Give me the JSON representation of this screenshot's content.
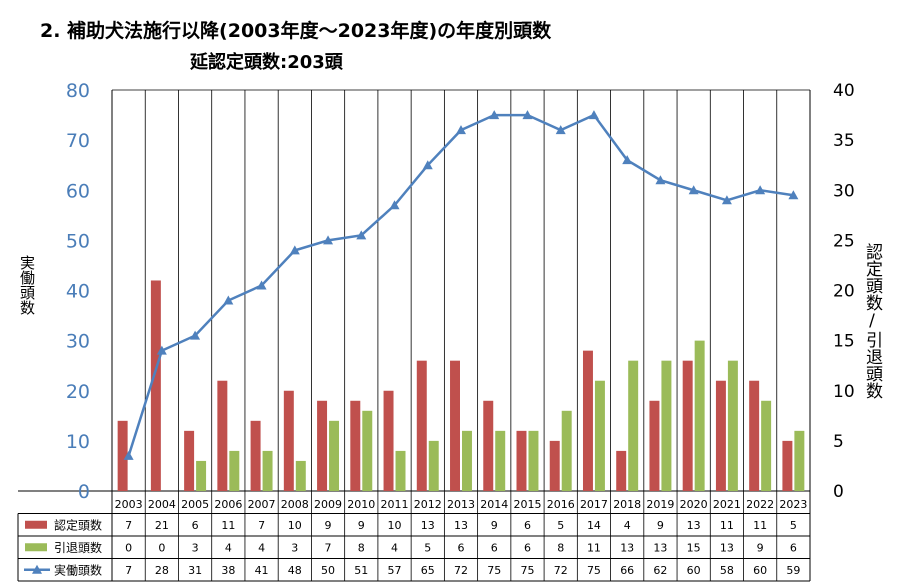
{
  "title": "2. 補助犬法施行以降(2003年度～2023年度)の年度別頭数",
  "subtitle": "延認定頭数:203頭",
  "chart_data": {
    "type": "bar",
    "categories": [
      "2003",
      "2004",
      "2005",
      "2006",
      "2007",
      "2008",
      "2009",
      "2010",
      "2011",
      "2012",
      "2013",
      "2014",
      "2015",
      "2016",
      "2017",
      "2018",
      "2019",
      "2020",
      "2021",
      "2022",
      "2023"
    ],
    "ylabel_left": "実働頭数",
    "ylabel_right": "認定頭数/引退頭数",
    "ylim_left": [
      0,
      80
    ],
    "ylim_right": [
      0,
      40
    ],
    "yticks_left": [
      0,
      10,
      20,
      30,
      40,
      50,
      60,
      70,
      80
    ],
    "yticks_right": [
      0,
      5,
      10,
      15,
      20,
      25,
      30,
      35,
      40
    ],
    "grid": "vertical",
    "legend": "data-table",
    "series": [
      {
        "name": "認定頭数",
        "type": "bar",
        "axis": "right",
        "color": "#c0504d",
        "values": [
          7,
          21,
          6,
          11,
          7,
          10,
          9,
          9,
          10,
          13,
          13,
          9,
          6,
          5,
          14,
          4,
          9,
          13,
          11,
          11,
          5
        ]
      },
      {
        "name": "引退頭数",
        "type": "bar",
        "axis": "right",
        "color": "#9bbb59",
        "values": [
          0,
          0,
          3,
          4,
          4,
          3,
          7,
          8,
          4,
          5,
          6,
          6,
          6,
          8,
          11,
          13,
          13,
          15,
          13,
          9,
          6
        ]
      },
      {
        "name": "実働頭数",
        "type": "line",
        "axis": "left",
        "color": "#4f81bd",
        "values": [
          7,
          28,
          31,
          38,
          41,
          48,
          50,
          51,
          57,
          65,
          72,
          75,
          75,
          72,
          75,
          66,
          62,
          60,
          58,
          60,
          59
        ]
      }
    ]
  }
}
